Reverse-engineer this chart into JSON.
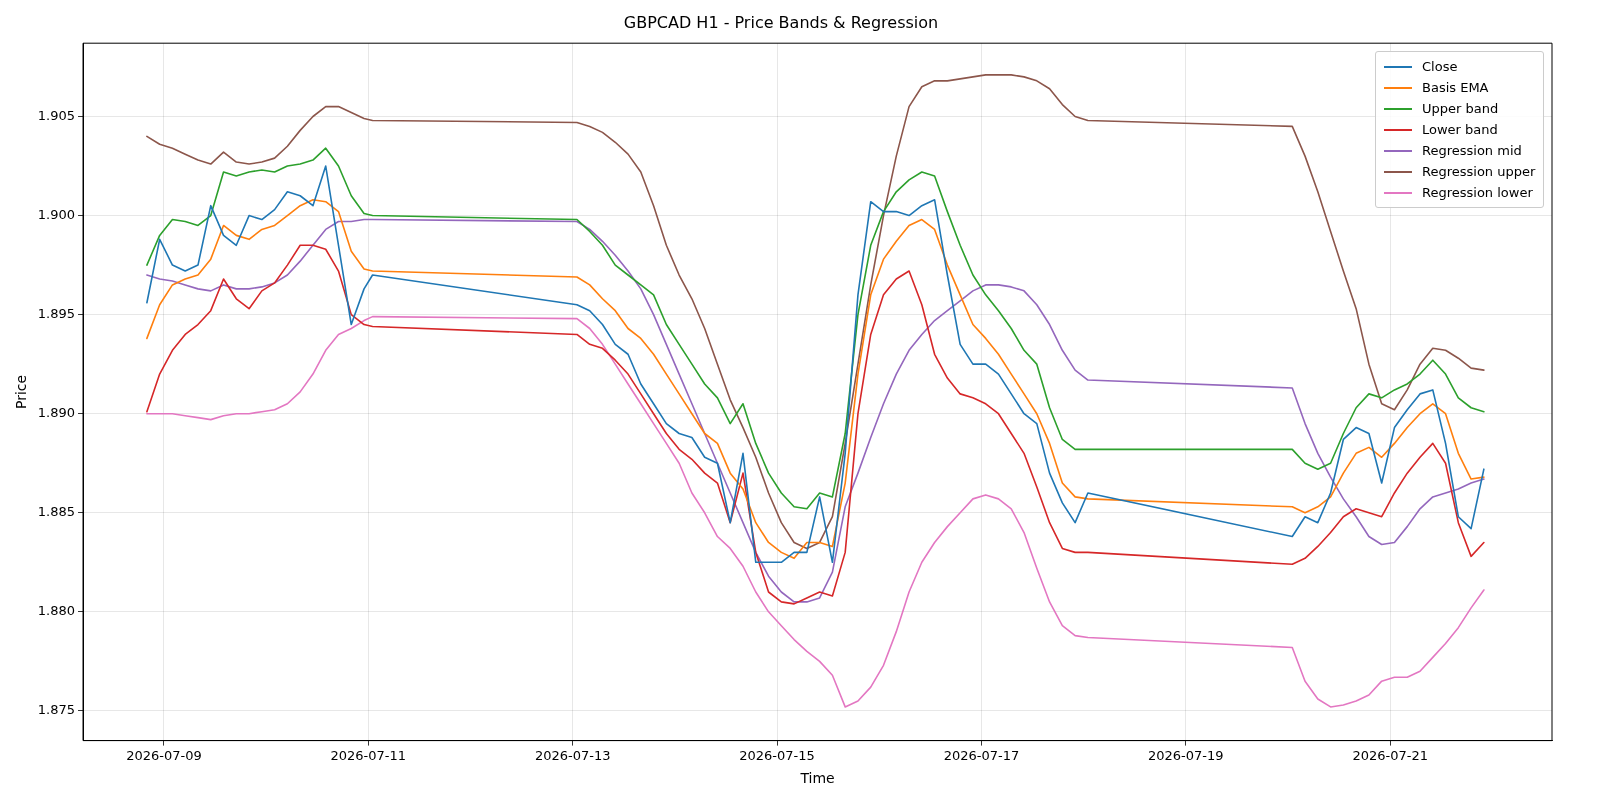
{
  "chart_data": {
    "type": "line",
    "title": "GBPCAD H1 - Price Bands & Regression",
    "xlabel": "Time",
    "ylabel": "Price",
    "x": [
      "2026-07-08T20:00",
      "2026-07-08T23:00",
      "2026-07-09T02:00",
      "2026-07-09T05:00",
      "2026-07-09T08:00",
      "2026-07-09T11:00",
      "2026-07-09T14:00",
      "2026-07-09T17:00",
      "2026-07-09T20:00",
      "2026-07-09T23:00",
      "2026-07-10T02:00",
      "2026-07-10T05:00",
      "2026-07-10T08:00",
      "2026-07-10T11:00",
      "2026-07-10T14:00",
      "2026-07-10T17:00",
      "2026-07-10T20:00",
      "2026-07-10T23:00",
      "2026-07-11T01:00",
      "2026-07-13T01:00",
      "2026-07-13T04:00",
      "2026-07-13T07:00",
      "2026-07-13T10:00",
      "2026-07-13T13:00",
      "2026-07-13T16:00",
      "2026-07-13T19:00",
      "2026-07-13T22:00",
      "2026-07-14T01:00",
      "2026-07-14T04:00",
      "2026-07-14T07:00",
      "2026-07-14T10:00",
      "2026-07-14T13:00",
      "2026-07-14T16:00",
      "2026-07-14T19:00",
      "2026-07-14T22:00",
      "2026-07-15T01:00",
      "2026-07-15T04:00",
      "2026-07-15T07:00",
      "2026-07-15T10:00",
      "2026-07-15T13:00",
      "2026-07-15T16:00",
      "2026-07-15T19:00",
      "2026-07-15T22:00",
      "2026-07-16T01:00",
      "2026-07-16T04:00",
      "2026-07-16T07:00",
      "2026-07-16T10:00",
      "2026-07-16T13:00",
      "2026-07-16T16:00",
      "2026-07-16T19:00",
      "2026-07-16T22:00",
      "2026-07-17T01:00",
      "2026-07-17T04:00",
      "2026-07-17T07:00",
      "2026-07-17T10:00",
      "2026-07-17T13:00",
      "2026-07-17T16:00",
      "2026-07-17T19:00",
      "2026-07-17T22:00",
      "2026-07-18T01:00",
      "2026-07-20T01:00",
      "2026-07-20T04:00",
      "2026-07-20T07:00",
      "2026-07-20T10:00",
      "2026-07-20T13:00",
      "2026-07-20T16:00",
      "2026-07-20T19:00",
      "2026-07-20T22:00",
      "2026-07-21T01:00",
      "2026-07-21T04:00",
      "2026-07-21T07:00",
      "2026-07-21T10:00",
      "2026-07-21T13:00",
      "2026-07-21T16:00",
      "2026-07-21T19:00",
      "2026-07-21T22:00"
    ],
    "series": [
      {
        "name": "Close",
        "color": "#1f77b4",
        "values": [
          1.8956,
          1.8988,
          1.8975,
          1.8972,
          1.8975,
          1.9005,
          1.899,
          1.8985,
          1.9,
          1.8998,
          1.9003,
          1.9012,
          1.901,
          1.9005,
          1.9025,
          1.8985,
          1.8945,
          1.8963,
          1.897,
          1.8955,
          1.8952,
          1.8945,
          1.8935,
          1.893,
          1.8915,
          1.8905,
          1.8895,
          1.889,
          1.8888,
          1.8878,
          1.8875,
          1.8845,
          1.888,
          1.8825,
          1.8825,
          1.8825,
          1.883,
          1.883,
          1.8858,
          1.8825,
          1.888,
          1.896,
          1.9007,
          1.9002,
          1.9002,
          1.9,
          1.9005,
          1.9008,
          1.897,
          1.8935,
          1.8925,
          1.8925,
          1.892,
          1.891,
          1.89,
          1.8895,
          1.887,
          1.8855,
          1.8845,
          1.886,
          1.8838,
          1.8848,
          1.8845,
          1.886,
          1.8887,
          1.8893,
          1.889,
          1.8865,
          1.8893,
          1.8902,
          1.891,
          1.8912,
          1.8885,
          1.8848,
          1.8842,
          1.8872
        ]
      },
      {
        "name": "Basis EMA",
        "color": "#ff7f0e",
        "values": [
          1.8938,
          1.8955,
          1.8965,
          1.8968,
          1.897,
          1.8978,
          1.8995,
          1.899,
          1.8988,
          1.8993,
          1.8995,
          1.9,
          1.9005,
          1.9008,
          1.9007,
          1.9002,
          1.8982,
          1.8973,
          1.8972,
          1.8969,
          1.8965,
          1.8958,
          1.8952,
          1.8943,
          1.8938,
          1.893,
          1.892,
          1.891,
          1.89,
          1.889,
          1.8885,
          1.887,
          1.8862,
          1.8845,
          1.8835,
          1.883,
          1.8827,
          1.8835,
          1.8835,
          1.8833,
          1.8865,
          1.892,
          1.896,
          1.8978,
          1.8987,
          1.8995,
          1.8998,
          1.8993,
          1.8975,
          1.896,
          1.8945,
          1.8938,
          1.893,
          1.892,
          1.891,
          1.89,
          1.8885,
          1.8865,
          1.8858,
          1.8857,
          1.8853,
          1.885,
          1.8853,
          1.8858,
          1.887,
          1.888,
          1.8883,
          1.8878,
          1.8885,
          1.8893,
          1.89,
          1.8905,
          1.89,
          1.888,
          1.8867,
          1.8868
        ]
      },
      {
        "name": "Upper band",
        "color": "#2ca02c",
        "values": [
          1.8975,
          1.899,
          1.8998,
          1.8997,
          1.8995,
          1.9,
          1.9022,
          1.902,
          1.9022,
          1.9023,
          1.9022,
          1.9025,
          1.9026,
          1.9028,
          1.9034,
          1.9025,
          1.901,
          1.9001,
          1.9,
          1.8998,
          1.8992,
          1.8985,
          1.8975,
          1.897,
          1.8965,
          1.896,
          1.8945,
          1.8935,
          1.8925,
          1.8915,
          1.8908,
          1.8895,
          1.8905,
          1.8885,
          1.887,
          1.886,
          1.8853,
          1.8852,
          1.886,
          1.8858,
          1.889,
          1.895,
          1.8985,
          1.9002,
          1.9012,
          1.9018,
          1.9022,
          1.902,
          1.9002,
          1.8985,
          1.897,
          1.896,
          1.8952,
          1.8943,
          1.8932,
          1.8925,
          1.8903,
          1.8887,
          1.8882,
          1.8882,
          1.8882,
          1.8875,
          1.8872,
          1.8875,
          1.889,
          1.8903,
          1.891,
          1.8908,
          1.8912,
          1.8915,
          1.892,
          1.8927,
          1.892,
          1.8908,
          1.8903,
          1.8901
        ]
      },
      {
        "name": "Lower band",
        "color": "#d62728",
        "values": [
          1.8901,
          1.892,
          1.8932,
          1.894,
          1.8945,
          1.8952,
          1.8968,
          1.8958,
          1.8953,
          1.8962,
          1.8966,
          1.8975,
          1.8985,
          1.8985,
          1.8983,
          1.8972,
          1.895,
          1.8945,
          1.8944,
          1.894,
          1.8935,
          1.8933,
          1.8927,
          1.892,
          1.891,
          1.89,
          1.889,
          1.8882,
          1.8877,
          1.887,
          1.8865,
          1.8845,
          1.887,
          1.883,
          1.881,
          1.8805,
          1.8804,
          1.8807,
          1.881,
          1.8808,
          1.883,
          1.89,
          1.894,
          1.896,
          1.8968,
          1.8972,
          1.8955,
          1.893,
          1.8918,
          1.891,
          1.8908,
          1.8905,
          1.89,
          1.889,
          1.888,
          1.8863,
          1.8845,
          1.8832,
          1.883,
          1.883,
          1.8824,
          1.8827,
          1.8833,
          1.884,
          1.8848,
          1.8852,
          1.885,
          1.8848,
          1.886,
          1.887,
          1.8878,
          1.8885,
          1.8875,
          1.8845,
          1.8828,
          1.8835
        ]
      },
      {
        "name": "Regression mid",
        "color": "#9467bd",
        "values": [
          1.897,
          1.8968,
          1.8967,
          1.8965,
          1.8963,
          1.8962,
          1.8965,
          1.8963,
          1.8963,
          1.8964,
          1.8966,
          1.897,
          1.8977,
          1.8985,
          1.8993,
          1.8997,
          1.8997,
          1.8998,
          1.8998,
          1.8997,
          1.8993,
          1.8987,
          1.898,
          1.8972,
          1.8963,
          1.895,
          1.8935,
          1.892,
          1.8905,
          1.889,
          1.8875,
          1.886,
          1.8845,
          1.883,
          1.8818,
          1.881,
          1.8805,
          1.8805,
          1.8807,
          1.882,
          1.8853,
          1.887,
          1.8888,
          1.8905,
          1.892,
          1.8932,
          1.894,
          1.8947,
          1.8952,
          1.8957,
          1.8962,
          1.8965,
          1.8965,
          1.8964,
          1.8962,
          1.8955,
          1.8945,
          1.8932,
          1.8922,
          1.8917,
          1.8913,
          1.8895,
          1.888,
          1.8868,
          1.8857,
          1.8848,
          1.8838,
          1.8834,
          1.8835,
          1.8843,
          1.8852,
          1.8858,
          1.886,
          1.8862,
          1.8865,
          1.8867
        ]
      },
      {
        "name": "Regression upper",
        "color": "#8c564b",
        "values": [
          1.904,
          1.9036,
          1.9034,
          1.9031,
          1.9028,
          1.9026,
          1.9032,
          1.9027,
          1.9026,
          1.9027,
          1.9029,
          1.9035,
          1.9043,
          1.905,
          1.9055,
          1.9055,
          1.9052,
          1.9049,
          1.9048,
          1.9047,
          1.9045,
          1.9042,
          1.9037,
          1.9031,
          1.9022,
          1.9005,
          1.8985,
          1.897,
          1.8958,
          1.8943,
          1.8925,
          1.8907,
          1.8893,
          1.8878,
          1.886,
          1.8845,
          1.8835,
          1.8832,
          1.8835,
          1.8848,
          1.8885,
          1.8925,
          1.8965,
          1.9,
          1.903,
          1.9055,
          1.9065,
          1.9068,
          1.9068,
          1.9069,
          1.907,
          1.9071,
          1.9071,
          1.9071,
          1.907,
          1.9068,
          1.9064,
          1.9056,
          1.905,
          1.9048,
          1.9045,
          1.903,
          1.9012,
          1.8992,
          1.8972,
          1.8953,
          1.8925,
          1.8905,
          1.8902,
          1.8912,
          1.8925,
          1.8933,
          1.8932,
          1.8928,
          1.8923,
          1.8922
        ]
      },
      {
        "name": "Regression lower",
        "color": "#e377c2",
        "values": [
          1.89,
          1.89,
          1.89,
          1.8899,
          1.8898,
          1.8897,
          1.8899,
          1.89,
          1.89,
          1.8901,
          1.8902,
          1.8905,
          1.8911,
          1.892,
          1.8932,
          1.894,
          1.8943,
          1.8947,
          1.8949,
          1.8948,
          1.8943,
          1.8935,
          1.8925,
          1.8915,
          1.8905,
          1.8895,
          1.8885,
          1.8875,
          1.886,
          1.885,
          1.8838,
          1.8832,
          1.8823,
          1.881,
          1.88,
          1.8793,
          1.8786,
          1.878,
          1.8775,
          1.8768,
          1.8752,
          1.8755,
          1.8762,
          1.8773,
          1.879,
          1.881,
          1.8825,
          1.8835,
          1.8843,
          1.885,
          1.8857,
          1.8859,
          1.8857,
          1.8852,
          1.884,
          1.8822,
          1.8805,
          1.8793,
          1.8788,
          1.8787,
          1.8782,
          1.8765,
          1.8756,
          1.8752,
          1.8753,
          1.8755,
          1.8758,
          1.8765,
          1.8767,
          1.8767,
          1.877,
          1.8777,
          1.8784,
          1.8792,
          1.8802,
          1.8811
        ]
      }
    ],
    "xlim": [
      "2026-07-08T05:00",
      "2026-07-22T14:00"
    ],
    "xticks": [
      {
        "value": "2026-07-09",
        "label": "2026-07-09"
      },
      {
        "value": "2026-07-11",
        "label": "2026-07-11"
      },
      {
        "value": "2026-07-13",
        "label": "2026-07-13"
      },
      {
        "value": "2026-07-15",
        "label": "2026-07-15"
      },
      {
        "value": "2026-07-17",
        "label": "2026-07-17"
      },
      {
        "value": "2026-07-19",
        "label": "2026-07-19"
      },
      {
        "value": "2026-07-21",
        "label": "2026-07-21"
      }
    ],
    "ylim": [
      1.8735,
      1.9087
    ],
    "yticks": [
      1.875,
      {
        "value": 1.88,
        "label": "1.880"
      },
      1.885,
      {
        "value": 1.89,
        "label": "1.890"
      },
      1.895,
      {
        "value": 1.9,
        "label": "1.900"
      },
      1.905
    ],
    "grid": true,
    "legend": "top right",
    "marker": "none",
    "line_style": "solid"
  }
}
